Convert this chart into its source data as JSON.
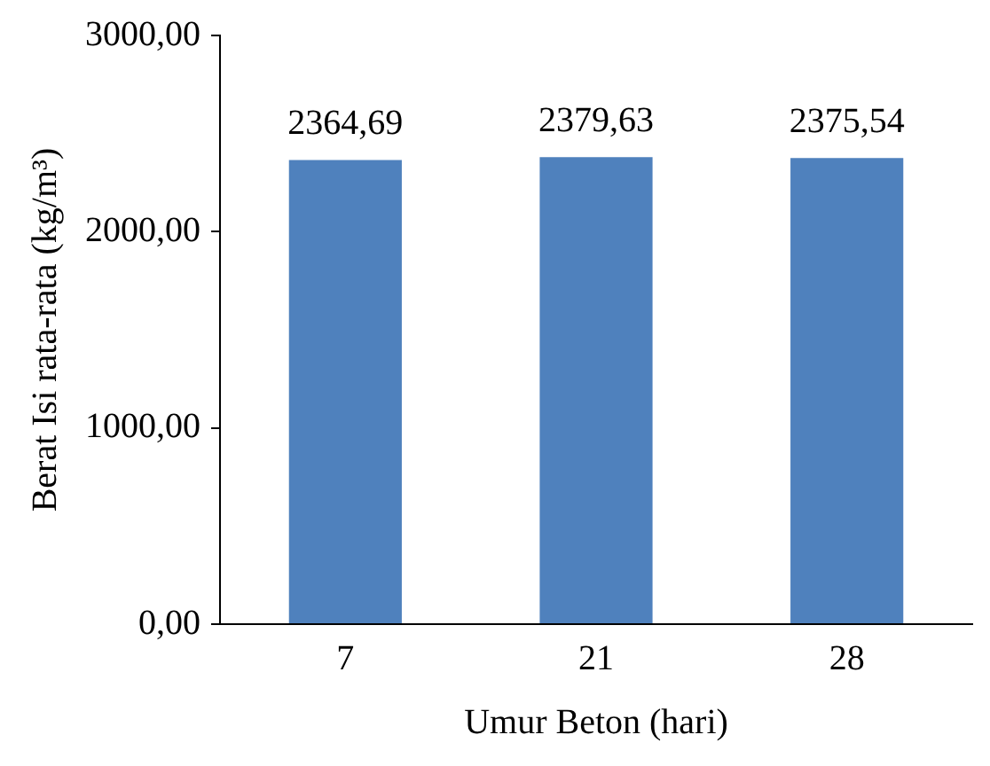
{
  "chart_data": {
    "type": "bar",
    "xlabel": "Umur Beton (hari)",
    "ylabel": "Berat Isi rata-rata (kg/m³)",
    "categories": [
      "7",
      "21",
      "28"
    ],
    "values": [
      2364.69,
      2379.63,
      2375.54
    ],
    "value_labels": [
      "2364,69",
      "2379,63",
      "2375,54"
    ],
    "color": "#4f81bd",
    "ylim": [
      0,
      3000
    ],
    "yticks": [
      {
        "value": 0,
        "label": "0,00"
      },
      {
        "value": 1000,
        "label": "1000,00"
      },
      {
        "value": 2000,
        "label": "2000,00"
      },
      {
        "value": 3000,
        "label": "3000,00"
      }
    ],
    "grid": false,
    "legend": false
  }
}
